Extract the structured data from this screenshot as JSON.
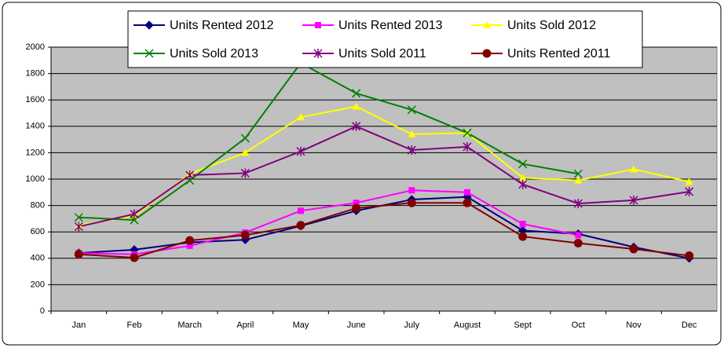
{
  "chart_data": {
    "type": "line",
    "categories": [
      "Jan",
      "Feb",
      "March",
      "April",
      "May",
      "June",
      "July",
      "August",
      "Sept",
      "Oct",
      "Nov",
      "Dec"
    ],
    "series": [
      {
        "name": "Units Rented 2012",
        "color": "#000080",
        "marker": "diamond",
        "values": [
          440,
          465,
          520,
          540,
          645,
          760,
          845,
          865,
          610,
          585,
          485,
          400
        ]
      },
      {
        "name": "Units Rented 2013",
        "color": "#ff00ff",
        "marker": "square",
        "values": [
          440,
          430,
          495,
          595,
          760,
          820,
          915,
          900,
          660,
          575,
          null,
          null
        ]
      },
      {
        "name": "Units Sold 2012",
        "color": "#ffff00",
        "marker": "triangle",
        "values": [
          650,
          720,
          1040,
          1200,
          1470,
          1550,
          1340,
          1350,
          1010,
          990,
          1075,
          980
        ]
      },
      {
        "name": "Units Sold 2013",
        "color": "#008000",
        "marker": "x",
        "values": [
          710,
          690,
          990,
          1310,
          1880,
          1650,
          1525,
          1350,
          1115,
          1040,
          null,
          null
        ]
      },
      {
        "name": "Units Sold 2011",
        "color": "#800080",
        "marker": "star",
        "values": [
          640,
          735,
          1030,
          1045,
          1210,
          1400,
          1220,
          1245,
          960,
          815,
          840,
          905
        ]
      },
      {
        "name": "Units Rented 2011",
        "color": "#800000",
        "marker": "circle",
        "values": [
          430,
          405,
          535,
          575,
          650,
          780,
          820,
          820,
          565,
          515,
          470,
          420
        ]
      }
    ],
    "ylim": [
      0,
      2000
    ],
    "yticks": [
      0,
      200,
      400,
      600,
      800,
      1000,
      1200,
      1400,
      1600,
      1800,
      2000
    ],
    "grid": true,
    "legend": "top"
  }
}
